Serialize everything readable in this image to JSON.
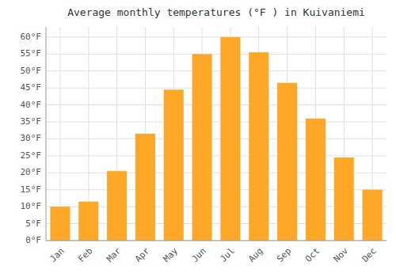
{
  "chart_data": {
    "type": "bar",
    "title": "Average monthly temperatures (°F ) in Kuivaniemi",
    "categories": [
      "Jan",
      "Feb",
      "Mar",
      "Apr",
      "May",
      "Jun",
      "Jul",
      "Aug",
      "Sep",
      "Oct",
      "Nov",
      "Dec"
    ],
    "values": [
      10,
      11.5,
      20.5,
      31.5,
      44.5,
      55,
      60,
      55.5,
      46.5,
      36,
      24.5,
      15
    ],
    "color": "#FFA726",
    "ylim": [
      0,
      63
    ],
    "yticks": [
      {
        "value": 0,
        "label": "0°F"
      },
      {
        "value": 5,
        "label": "5°F"
      },
      {
        "value": 10,
        "label": "10°F"
      },
      {
        "value": 15,
        "label": "15°F"
      },
      {
        "value": 20,
        "label": "20°F"
      },
      {
        "value": 25,
        "label": "25°F"
      },
      {
        "value": 30,
        "label": "30°F"
      },
      {
        "value": 35,
        "label": "35°F"
      },
      {
        "value": 40,
        "label": "40°F"
      },
      {
        "value": 45,
        "label": "45°F"
      },
      {
        "value": 50,
        "label": "50°F"
      },
      {
        "value": 55,
        "label": "55°F"
      },
      {
        "value": 60,
        "label": "60°F"
      }
    ],
    "grid": true
  }
}
